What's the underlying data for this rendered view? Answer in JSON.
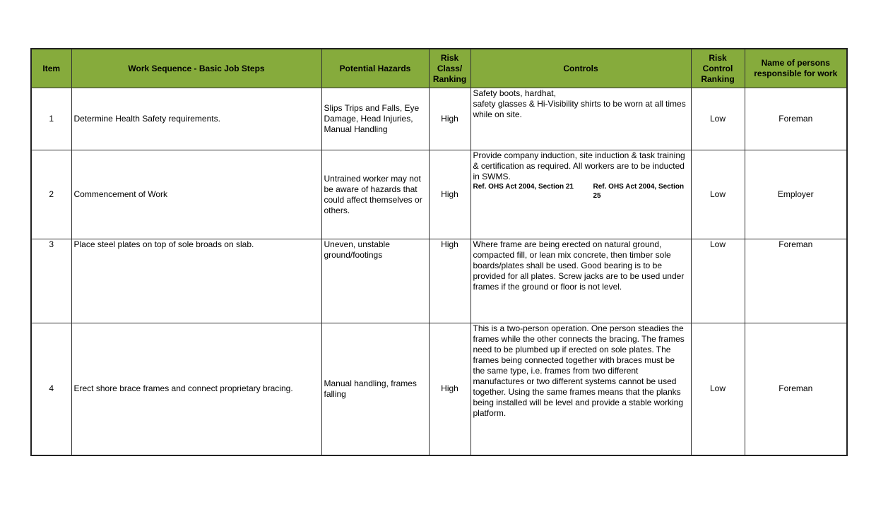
{
  "header_color": "#86ab3c",
  "headers": [
    "Item",
    "Work Sequence - Basic Job Steps",
    "Potential Hazards",
    "Risk Class/ Ranking",
    "Controls",
    "Risk Control Ranking",
    "Name of persons responsible for work"
  ],
  "rows": [
    {
      "item": "1",
      "step": "Determine Health Safety requirements.",
      "hazards": "Slips Trips and Falls, Eye Damage, Head Injuries, Manual Handling",
      "risk": "High",
      "controls": "Safety boots, hardhat,\nsafety glasses & Hi-Visibility shirts to be worn at all times while on site.",
      "control_rank": "Low",
      "person": "Foreman"
    },
    {
      "item": "2",
      "step": "Commencement of Work",
      "hazards": "Untrained worker may not be aware of hazards that could affect themselves or others.",
      "risk": "High",
      "controls": "Provide company induction, site induction & task training & certification as required. All workers are to be inducted in SWMS.",
      "ref1": "Ref. OHS Act 2004, Section 21",
      "ref2": "Ref. OHS Act 2004, Section 25",
      "control_rank": "Low",
      "person": "Employer"
    },
    {
      "item": "3",
      "step": "Place steel plates on top of sole broads on slab.",
      "hazards": "Uneven, unstable ground/footings",
      "risk": "High",
      "controls": "Where frame are being erected on natural ground, compacted fill, or lean mix concrete, then timber sole boards/plates shall be used. Good bearing is to be provided for all plates. Screw jacks are to be used under frames if the ground or floor is not level.",
      "control_rank": "Low",
      "person": "Foreman"
    },
    {
      "item": "4",
      "step": "Erect shore brace frames and connect proprietary bracing.",
      "hazards": "Manual handling, frames falling",
      "risk": "High",
      "controls": "This is a two-person operation. One person steadies the frames while the other connects the bracing. The frames need to be plumbed up if erected on sole plates. The frames being connected together with braces must be the same type, i.e. frames from two different manufactures or two different systems cannot be used together. Using the same frames means that the planks being installed will be level and provide a stable working platform.",
      "control_rank": "Low",
      "person": "Foreman"
    }
  ]
}
